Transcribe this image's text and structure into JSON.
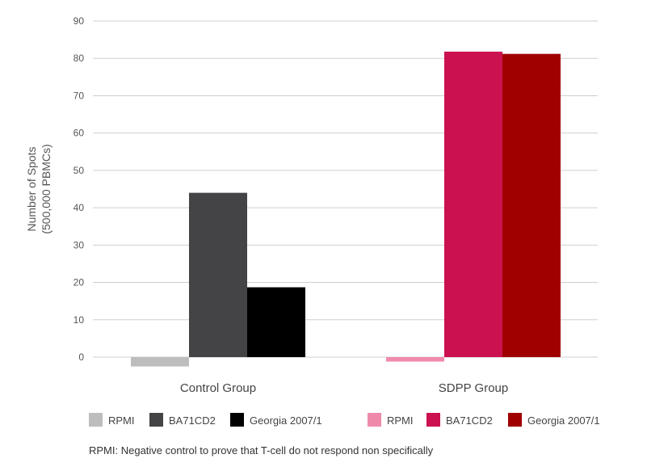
{
  "chart_data": {
    "type": "bar",
    "title": "",
    "xlabel": "",
    "ylabel": "Number of Spots",
    "ylabel_line2": "(500,000 PBMCs)",
    "ylim": [
      0,
      90
    ],
    "yticks": [
      0,
      10,
      20,
      30,
      40,
      50,
      60,
      70,
      80,
      90
    ],
    "grid": true,
    "categories": [
      "Control Group",
      "SDPP Group"
    ],
    "groups": [
      {
        "category": "Control Group",
        "series": [
          {
            "name": "RPMI",
            "value": -2.5,
            "color": "#bdbdbd"
          },
          {
            "name": "BA71CD2",
            "value": 44,
            "color": "#444446"
          },
          {
            "name": "Georgia 2007/1",
            "value": 18.7,
            "color": "#000000"
          }
        ]
      },
      {
        "category": "SDPP Group",
        "series": [
          {
            "name": "RPMI",
            "value": -1.2,
            "color": "#f08aaa"
          },
          {
            "name": "BA71CD2",
            "value": 81.8,
            "color": "#cc1150"
          },
          {
            "name": "Georgia 2007/1",
            "value": 81.2,
            "color": "#a00000"
          }
        ]
      }
    ],
    "legend_placement": "bottom",
    "legend": [
      {
        "name": "RPMI",
        "color": "#bdbdbd"
      },
      {
        "name": "BA71CD2",
        "color": "#444446"
      },
      {
        "name": "Georgia 2007/1",
        "color": "#000000"
      },
      {
        "name": "RPMI",
        "color": "#f08aaa"
      },
      {
        "name": "BA71CD2",
        "color": "#cc1150"
      },
      {
        "name": "Georgia 2007/1",
        "color": "#a00000"
      }
    ],
    "annotation": "RPMI: Negative control to prove that T-cell do not respond non specifically"
  }
}
